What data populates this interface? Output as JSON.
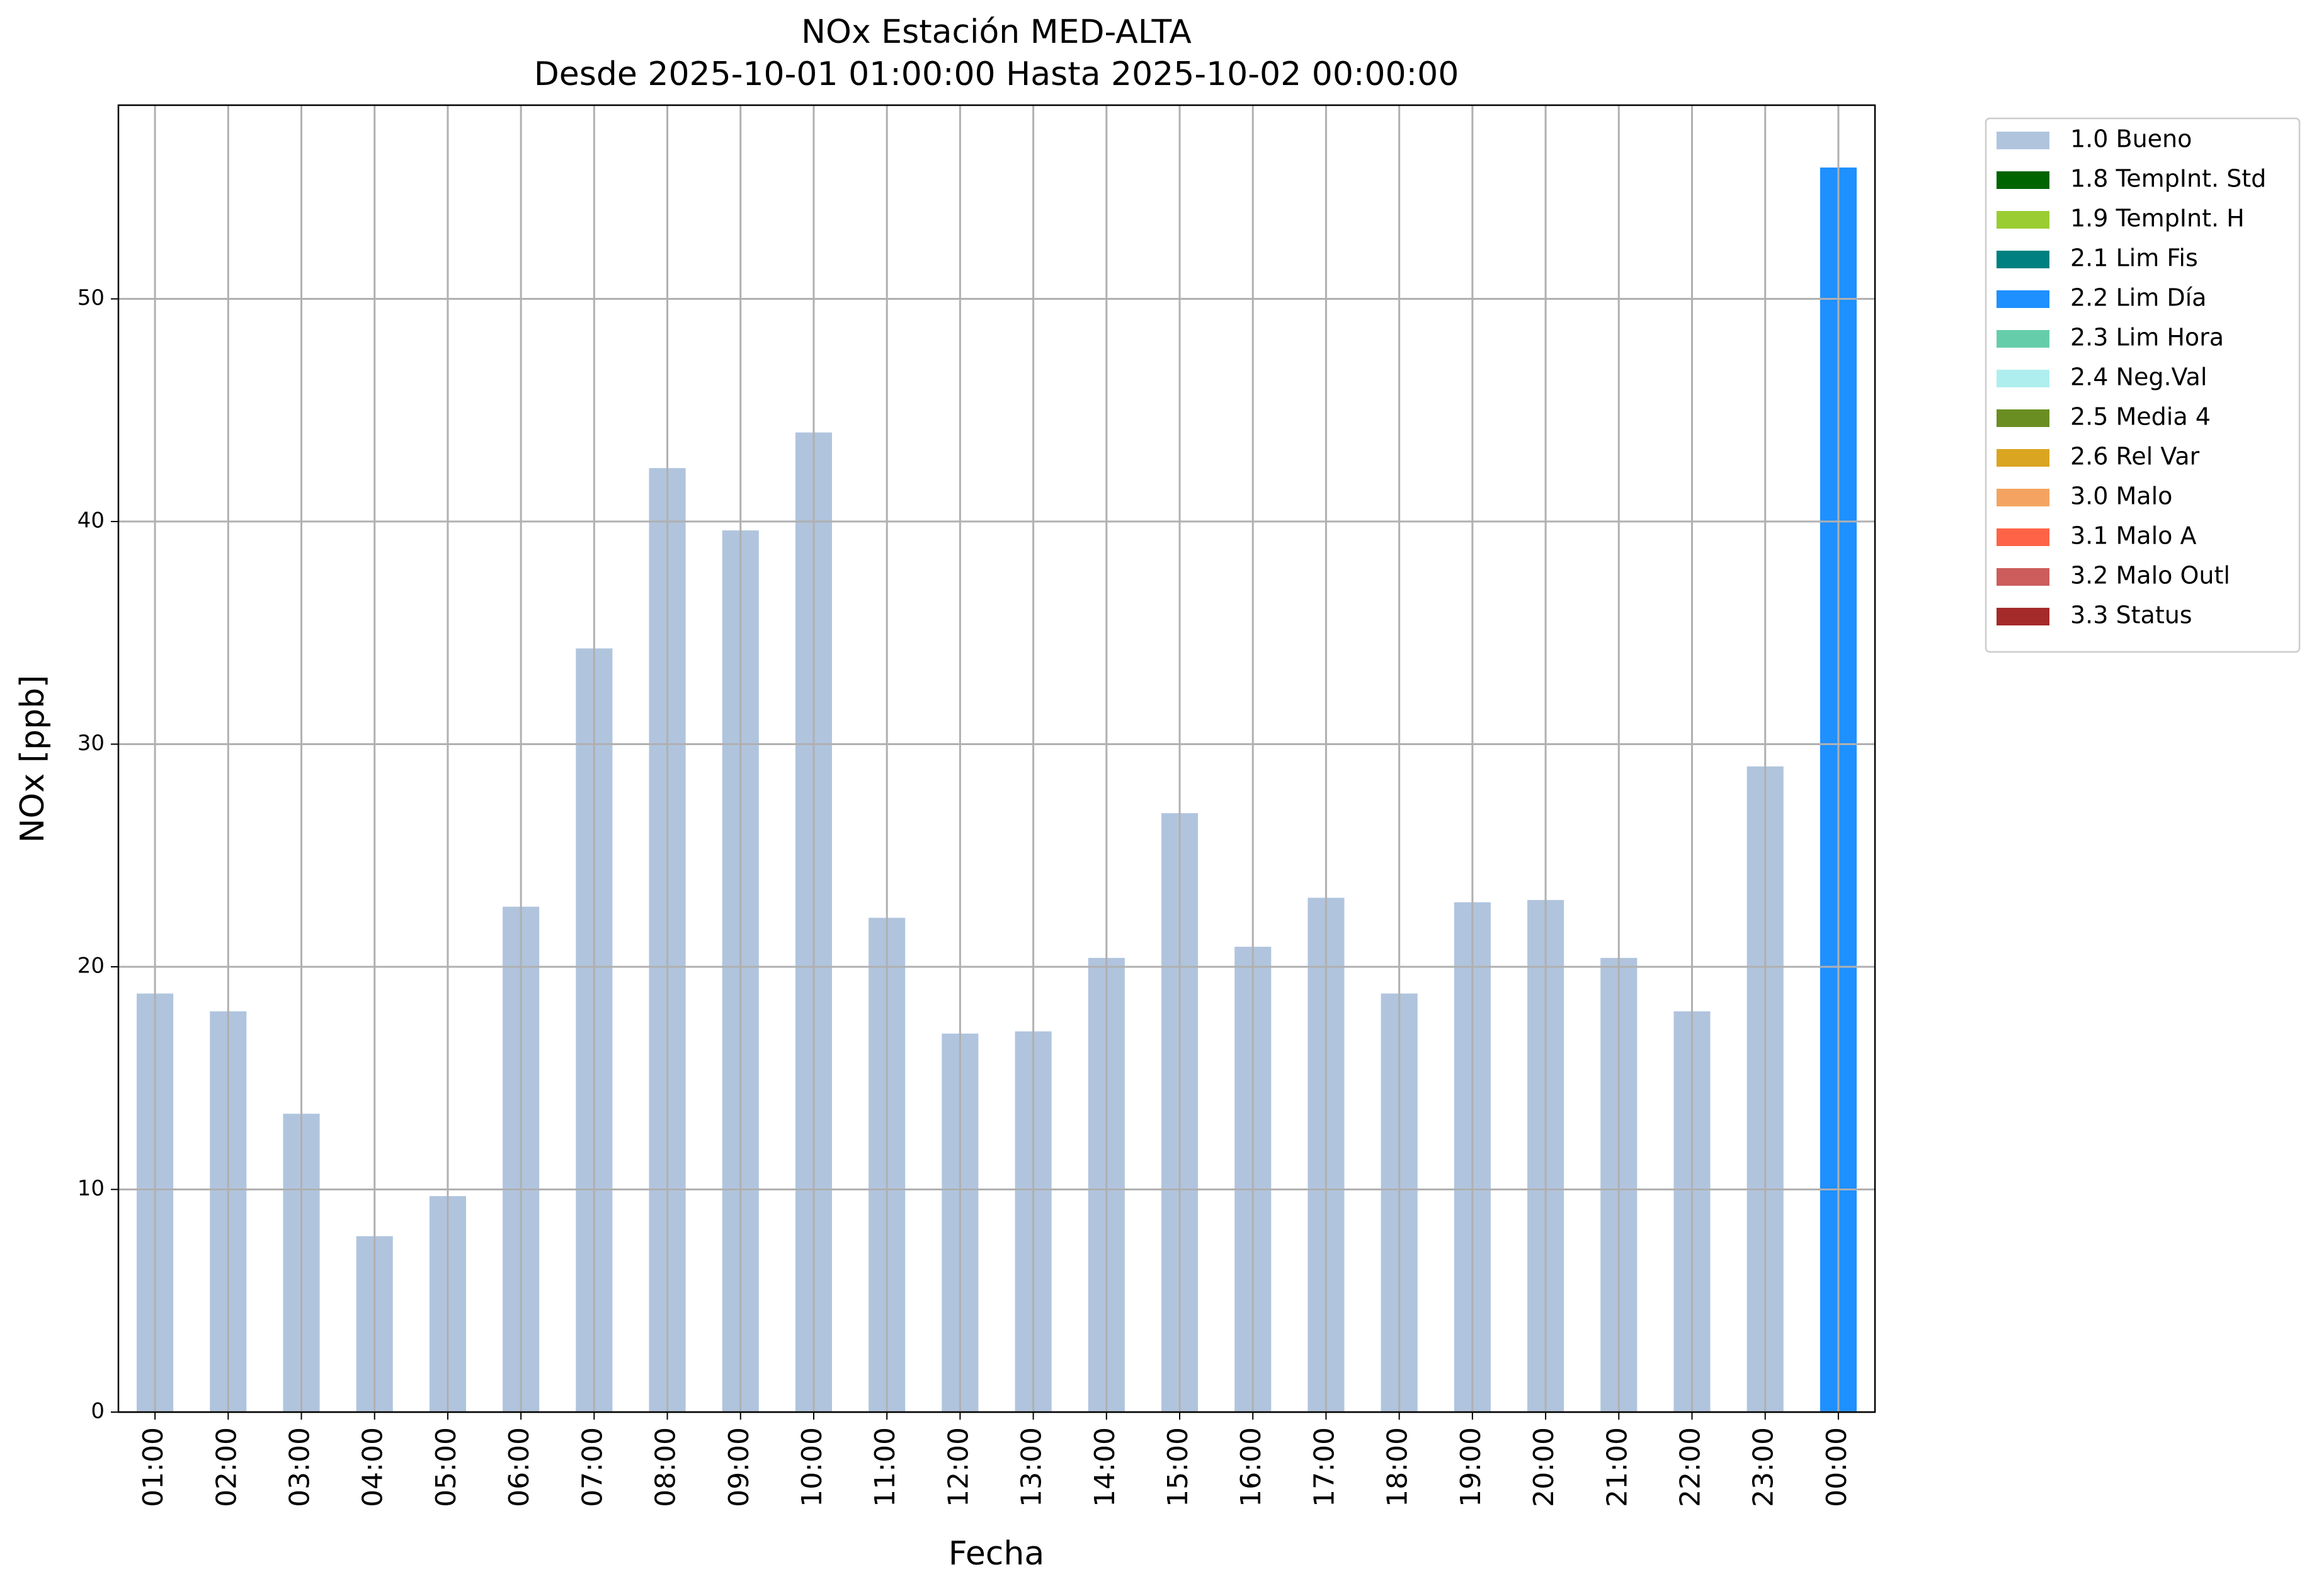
{
  "chart_data": {
    "type": "stacked-bar",
    "title": "NOx Estación MED-ALTA",
    "subtitle": "Desde 2025-10-01 01:00:00 Hasta 2025-10-02 00:00:00",
    "x_label": "Fecha",
    "y_label": "NOx [ppb]",
    "categories": [
      "01:00",
      "02:00",
      "03:00",
      "04:00",
      "05:00",
      "06:00",
      "07:00",
      "08:00",
      "09:00",
      "10:00",
      "11:00",
      "12:00",
      "13:00",
      "14:00",
      "15:00",
      "16:00",
      "17:00",
      "18:00",
      "19:00",
      "20:00",
      "21:00",
      "22:00",
      "23:00",
      "00:00"
    ],
    "series": [
      {
        "name": "1.0 Bueno",
        "color": "#b0c4de",
        "values": [
          18.8,
          18.0,
          13.4,
          7.9,
          9.7,
          22.7,
          34.3,
          42.4,
          39.6,
          44.0,
          22.2,
          17.0,
          17.1,
          20.4,
          26.9,
          20.9,
          23.1,
          18.8,
          22.9,
          23.0,
          20.4,
          18.0,
          29.0,
          null
        ]
      },
      {
        "name": "1.8 TempInt. Std",
        "color": "#006400",
        "values": [
          null,
          null,
          null,
          null,
          null,
          null,
          null,
          null,
          null,
          null,
          null,
          null,
          null,
          null,
          null,
          null,
          null,
          null,
          null,
          null,
          null,
          null,
          null,
          null
        ]
      },
      {
        "name": "1.9 TempInt. H",
        "color": "#9acd32",
        "values": [
          null,
          null,
          null,
          null,
          null,
          null,
          null,
          null,
          null,
          null,
          null,
          null,
          null,
          null,
          null,
          null,
          null,
          null,
          null,
          null,
          null,
          null,
          null,
          null
        ]
      },
      {
        "name": "2.1 Lim Fis",
        "color": "#008080",
        "values": [
          null,
          null,
          null,
          null,
          null,
          null,
          null,
          null,
          null,
          null,
          null,
          null,
          null,
          null,
          null,
          null,
          null,
          null,
          null,
          null,
          null,
          null,
          null,
          null
        ]
      },
      {
        "name": "2.2 Lim Día",
        "color": "#1e90ff",
        "values": [
          null,
          null,
          null,
          null,
          null,
          null,
          null,
          null,
          null,
          null,
          null,
          null,
          null,
          null,
          null,
          null,
          null,
          null,
          null,
          null,
          null,
          null,
          null,
          55.9
        ]
      },
      {
        "name": "2.3 Lim Hora",
        "color": "#66cdaa",
        "values": [
          null,
          null,
          null,
          null,
          null,
          null,
          null,
          null,
          null,
          null,
          null,
          null,
          null,
          null,
          null,
          null,
          null,
          null,
          null,
          null,
          null,
          null,
          null,
          null
        ]
      },
      {
        "name": "2.4 Neg.Val",
        "color": "#afeeee",
        "values": [
          null,
          null,
          null,
          null,
          null,
          null,
          null,
          null,
          null,
          null,
          null,
          null,
          null,
          null,
          null,
          null,
          null,
          null,
          null,
          null,
          null,
          null,
          null,
          null
        ]
      },
      {
        "name": "2.5 Media 4",
        "color": "#6b8e23",
        "values": [
          null,
          null,
          null,
          null,
          null,
          null,
          null,
          null,
          null,
          null,
          null,
          null,
          null,
          null,
          null,
          null,
          null,
          null,
          null,
          null,
          null,
          null,
          null,
          null
        ]
      },
      {
        "name": "2.6 Rel Var",
        "color": "#daa520",
        "values": [
          null,
          null,
          null,
          null,
          null,
          null,
          null,
          null,
          null,
          null,
          null,
          null,
          null,
          null,
          null,
          null,
          null,
          null,
          null,
          null,
          null,
          null,
          null,
          null
        ]
      },
      {
        "name": "3.0 Malo",
        "color": "#f4a460",
        "values": [
          null,
          null,
          null,
          null,
          null,
          null,
          null,
          null,
          null,
          null,
          null,
          null,
          null,
          null,
          null,
          null,
          null,
          null,
          null,
          null,
          null,
          null,
          null,
          null
        ]
      },
      {
        "name": "3.1 Malo A",
        "color": "#ff6347",
        "values": [
          null,
          null,
          null,
          null,
          null,
          null,
          null,
          null,
          null,
          null,
          null,
          null,
          null,
          null,
          null,
          null,
          null,
          null,
          null,
          null,
          null,
          null,
          null,
          null
        ]
      },
      {
        "name": "3.2 Malo Outl",
        "color": "#cd5c5c",
        "values": [
          null,
          null,
          null,
          null,
          null,
          null,
          null,
          null,
          null,
          null,
          null,
          null,
          null,
          null,
          null,
          null,
          null,
          null,
          null,
          null,
          null,
          null,
          null,
          null
        ]
      },
      {
        "name": "3.3 Status",
        "color": "#a52a2a",
        "values": [
          null,
          null,
          null,
          null,
          null,
          null,
          null,
          null,
          null,
          null,
          null,
          null,
          null,
          null,
          null,
          null,
          null,
          null,
          null,
          null,
          null,
          null,
          null,
          null
        ]
      }
    ],
    "ylim": [
      0,
      58.7
    ],
    "yticks": [
      0,
      10,
      20,
      30,
      40,
      50
    ],
    "grid": true,
    "legend": "outside-right"
  }
}
